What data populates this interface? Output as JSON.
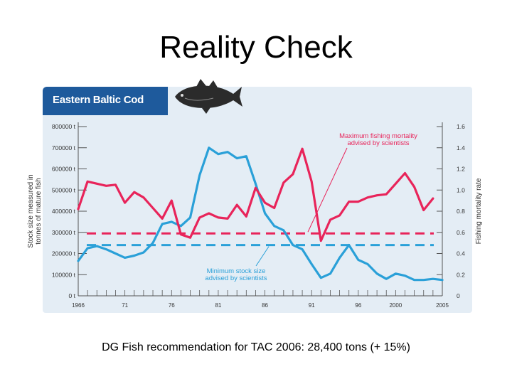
{
  "slide": {
    "title": "Reality Check",
    "caption": "DG Fish recommendation for TAC 2006: 28,400 tons (+ 15%)"
  },
  "chart_data": {
    "type": "line",
    "title": "Eastern Baltic Cod",
    "ylabel": "Stock size measured in tonnes of mature fish",
    "y2label": "Fishing mortality rate",
    "xlim": [
      1966,
      2005
    ],
    "ylim": [
      0,
      800000
    ],
    "y2lim": [
      0,
      1.6
    ],
    "x_ticks": [
      "1966",
      "71",
      "76",
      "81",
      "86",
      "91",
      "96",
      "2000",
      "2005"
    ],
    "x_tick_values": [
      1966,
      1971,
      1976,
      1981,
      1986,
      1991,
      1996,
      2000,
      2005
    ],
    "y_ticks": [
      "800000 t",
      "700000 t",
      "600000 t",
      "500000 t",
      "400000 t",
      "300000 t",
      "200000 t",
      "100000 t",
      "0 t"
    ],
    "y_tick_values": [
      800000,
      700000,
      600000,
      500000,
      400000,
      300000,
      200000,
      100000,
      0
    ],
    "y2_ticks": [
      "1.6",
      "1.4",
      "1.2",
      "1.0",
      "0.8",
      "0.6",
      "0.4",
      "0.2",
      "0"
    ],
    "y2_tick_values": [
      1.6,
      1.4,
      1.2,
      1.0,
      0.8,
      0.6,
      0.4,
      0.2,
      0
    ],
    "series": [
      {
        "axis": "left",
        "color": "#2aa0d8",
        "x": [
          1966,
          1967,
          1968,
          1969,
          1970,
          1971,
          1972,
          1973,
          1974,
          1975,
          1976,
          1977,
          1978,
          1979,
          1980,
          1981,
          1982,
          1983,
          1984,
          1985,
          1986,
          1987,
          1988,
          1989,
          1990,
          1991,
          1992,
          1993,
          1994,
          1995,
          1996,
          1997,
          1998,
          1999,
          2000,
          2001,
          2002,
          2003,
          2004,
          2005
        ],
        "values": [
          165000,
          225000,
          235000,
          220000,
          200000,
          180000,
          190000,
          205000,
          250000,
          340000,
          350000,
          330000,
          370000,
          570000,
          700000,
          670000,
          680000,
          650000,
          660000,
          530000,
          390000,
          330000,
          310000,
          240000,
          220000,
          150000,
          85000,
          105000,
          180000,
          240000,
          170000,
          150000,
          105000,
          80000,
          105000,
          95000,
          75000,
          75000,
          80000,
          75000
        ]
      },
      {
        "axis": "right",
        "color": "#e8245a",
        "x": [
          1966,
          1967,
          1968,
          1969,
          1970,
          1971,
          1972,
          1973,
          1974,
          1975,
          1976,
          1977,
          1978,
          1979,
          1980,
          1981,
          1982,
          1983,
          1984,
          1985,
          1986,
          1987,
          1988,
          1989,
          1990,
          1991,
          1992,
          1993,
          1994,
          1995,
          1996,
          1997,
          1998,
          1999,
          2000,
          2001,
          2002,
          2003,
          2004
        ],
        "values": [
          0.82,
          1.08,
          1.06,
          1.04,
          1.05,
          0.88,
          0.98,
          0.93,
          0.83,
          0.73,
          0.9,
          0.58,
          0.55,
          0.74,
          0.78,
          0.74,
          0.73,
          0.86,
          0.75,
          1.02,
          0.88,
          0.83,
          1.07,
          1.15,
          1.39,
          1.08,
          0.52,
          0.72,
          0.76,
          0.89,
          0.89,
          0.93,
          0.95,
          0.96,
          1.06,
          1.16,
          1.03,
          0.81,
          0.92
        ]
      }
    ],
    "reference_lines": [
      {
        "axis": "right",
        "value": 0.59,
        "color": "#e8245a",
        "label": "Maximum fishing mortality advised by scientists"
      },
      {
        "axis": "left",
        "value": 240000,
        "color": "#2aa0d8",
        "label": "Minimum stock size advised by scientists"
      }
    ]
  }
}
